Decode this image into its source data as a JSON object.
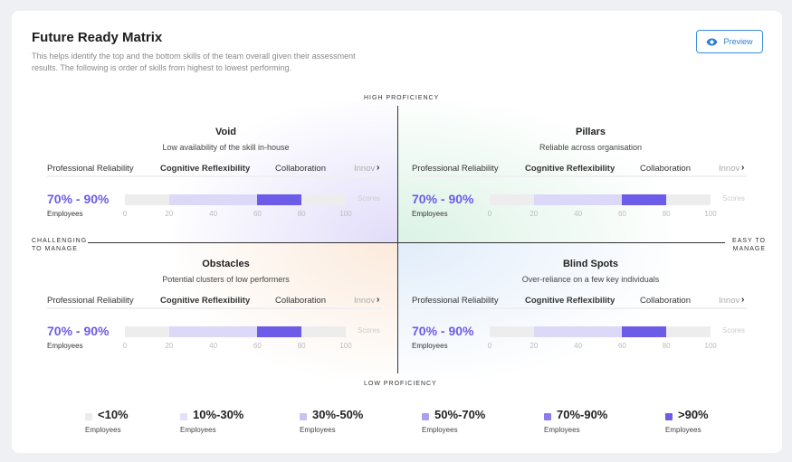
{
  "header": {
    "title": "Future Ready Matrix",
    "description": "This helps identify the top and the bottom skills of the team overall given their assessment results. The following is order of skills from highest to lowest performing.",
    "preview_label": "Preview",
    "preview_icon": "eye-icon"
  },
  "axes": {
    "top": "HIGH PROFICIENCY",
    "bottom": "LOW PROFICIENCY",
    "left": "CHALLENGING TO MANAGE",
    "right": "EASY TO MANAGE"
  },
  "colors": {
    "accent": "#6c5ce7",
    "light": "#dcd8f8",
    "track": "#ededed"
  },
  "quadrants": [
    {
      "id": "void",
      "title": "Void",
      "subtitle": "Low availability of the skill in-house",
      "tabs": [
        "Professional Reliability",
        "Cognitive Reflexibility",
        "Collaboration",
        "Innov"
      ],
      "active_tab": 1,
      "range": "70% - 90%",
      "range_caption": "Employees",
      "score_label": "Scores",
      "ticks": [
        "0",
        "20",
        "40",
        "60",
        "80",
        "100"
      ],
      "light_span": [
        20,
        60
      ],
      "highlight_span": [
        60,
        80
      ]
    },
    {
      "id": "pillars",
      "title": "Pillars",
      "subtitle": "Reliable across organisation",
      "tabs": [
        "Professional Reliability",
        "Cognitive Reflexibility",
        "Collaboration",
        "Innov"
      ],
      "active_tab": 1,
      "range": "70% - 90%",
      "range_caption": "Employees",
      "score_label": "Scores",
      "ticks": [
        "0",
        "20",
        "40",
        "60",
        "80",
        "100"
      ],
      "light_span": [
        20,
        60
      ],
      "highlight_span": [
        60,
        80
      ]
    },
    {
      "id": "obstacles",
      "title": "Obstacles",
      "subtitle": "Potential clusters of low performers",
      "tabs": [
        "Professional Reliability",
        "Cognitive Reflexibility",
        "Collaboration",
        "Innov"
      ],
      "active_tab": 1,
      "range": "70% - 90%",
      "range_caption": "Employees",
      "score_label": "Scores",
      "ticks": [
        "0",
        "20",
        "40",
        "60",
        "80",
        "100"
      ],
      "light_span": [
        20,
        60
      ],
      "highlight_span": [
        60,
        80
      ]
    },
    {
      "id": "blind-spots",
      "title": "Blind Spots",
      "subtitle": "Over-reliance on a few key individuals",
      "tabs": [
        "Professional Reliability",
        "Cognitive Reflexibility",
        "Collaboration",
        "Innov"
      ],
      "active_tab": 1,
      "range": "70% - 90%",
      "range_caption": "Employees",
      "score_label": "Scores",
      "ticks": [
        "0",
        "20",
        "40",
        "60",
        "80",
        "100"
      ],
      "light_span": [
        20,
        60
      ],
      "highlight_span": [
        60,
        80
      ]
    }
  ],
  "legend": [
    {
      "label": "<10%",
      "caption": "Employees",
      "color": "#ececec"
    },
    {
      "label": "10%-30%",
      "caption": "Employees",
      "color": "#e3e0fa"
    },
    {
      "label": "30%-50%",
      "caption": "Employees",
      "color": "#c9c2f5"
    },
    {
      "label": "50%-70%",
      "caption": "Employees",
      "color": "#aba0f0"
    },
    {
      "label": "70%-90%",
      "caption": "Employees",
      "color": "#8a7bee"
    },
    {
      "label": ">90%",
      "caption": "Employees",
      "color": "#6c5ce7"
    }
  ]
}
